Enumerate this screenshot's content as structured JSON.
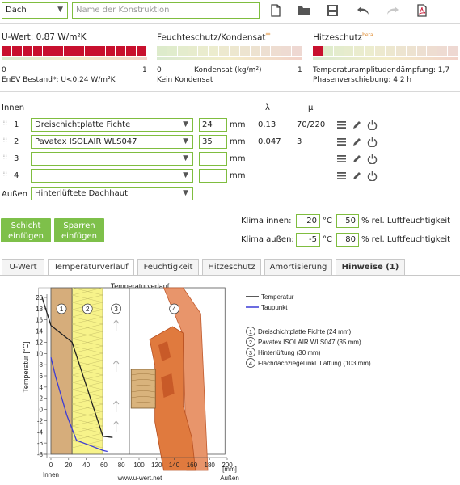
{
  "toolbar": {
    "type_select": "Dach",
    "name_placeholder": "Name der Konstruktion",
    "icons": [
      "new-file-icon",
      "open-folder-icon",
      "save-icon",
      "undo-icon",
      "redo-icon",
      "pdf-icon"
    ]
  },
  "indicators": {
    "uwert": {
      "label": "U-Wert: 0,87 W/m²K",
      "scale_min": "0",
      "scale_max": "1",
      "note": "EnEV Bestand*: U<0.24 W/m²K",
      "fill_fraction": 1.0,
      "color": "#c8102e"
    },
    "feuchte": {
      "label": "Feuchteschutz/Kondensat",
      "marker": "**",
      "scale_min": "0",
      "scale_mid": "Kondensat (kg/m²)",
      "scale_max": "1",
      "note": "Kein Kondensat",
      "fill_fraction": 0.02,
      "color": "#7ec04a"
    },
    "hitze": {
      "label": "Hitzeschutz",
      "marker": "beta",
      "line1": "Temperaturamplitudendämpfung: 1,7",
      "line2": "Phasenverschiebung: 4,2 h",
      "fill_fraction": 0.1,
      "color": "#c8102e"
    }
  },
  "layers": {
    "header_inside": "Innen",
    "header_lambda": "λ",
    "header_mu": "μ",
    "unit": "mm",
    "rows": [
      {
        "num": "1",
        "material": "Dreischichtplatte Fichte",
        "thickness": "24",
        "lambda": "0.13",
        "mu": "70/220"
      },
      {
        "num": "2",
        "material": "Pavatex ISOLAIR WLS047",
        "thickness": "35",
        "lambda": "0.047",
        "mu": "3"
      },
      {
        "num": "3",
        "material": "",
        "thickness": "",
        "lambda": "",
        "mu": ""
      },
      {
        "num": "4",
        "material": "",
        "thickness": "",
        "lambda": "",
        "mu": ""
      }
    ],
    "outside_label": "Außen",
    "outside_select": "Hinterlüftete Dachhaut"
  },
  "buttons": {
    "insert_layer": "Schicht einfügen",
    "insert_rafter": "Sparren einfügen"
  },
  "climate": {
    "inside_label": "Klima innen:",
    "inside_temp": "20",
    "inside_hum": "50",
    "outside_label": "Klima außen:",
    "outside_temp": "-5",
    "outside_hum": "80",
    "temp_unit": "°C",
    "hum_unit": "% rel. Luftfeuchtigkeit"
  },
  "tabs": [
    "U-Wert",
    "Temperaturverlauf",
    "Feuchtigkeit",
    "Hitzeschutz",
    "Amortisierung",
    "Hinweise (1)"
  ],
  "active_tab": "Temperaturverlauf",
  "chart": {
    "ylabel": "Temperatur [°C]",
    "inside_label": "Innen",
    "outside_label": "Außen",
    "unit_label": "[mm]",
    "watermark": "www.u-wert.net",
    "legend": [
      {
        "name": "Temperatur",
        "color": "#222222"
      },
      {
        "name": "Taupunkt",
        "color": "#3b3bd6"
      }
    ],
    "layer_list": [
      {
        "num": "1",
        "text": "Dreischichtplatte Fichte (24 mm)"
      },
      {
        "num": "2",
        "text": "Pavatex ISOLAIR WLS047 (35 mm)"
      },
      {
        "num": "3",
        "text": "Hinterlüftung (30 mm)"
      },
      {
        "num": "4",
        "text": "Flachdachziegel inkl. Lattung (103 mm)"
      }
    ]
  },
  "chart_data": {
    "type": "line",
    "title": "Temperaturverlauf",
    "ylabel": "Temperatur [°C]",
    "xlabel": "[mm]",
    "ylim": [
      -8,
      20
    ],
    "xlim": [
      0,
      200
    ],
    "yticks": [
      "20",
      "18",
      "16",
      "14",
      "12",
      "10",
      "8",
      "6",
      "4",
      "2",
      "0",
      "-2",
      "-4",
      "-6",
      "-8"
    ],
    "xticks": [
      "0",
      "20",
      "40",
      "60",
      "80",
      "100",
      "120",
      "140",
      "160",
      "180",
      "200"
    ],
    "series": [
      {
        "name": "Temperatur",
        "color": "#222222",
        "x": [
          -10,
          -6,
          0,
          24,
          59,
          70
        ],
        "y": [
          20,
          18,
          15,
          12,
          -4.8,
          -5.0
        ]
      },
      {
        "name": "Taupunkt",
        "color": "#3b3bd6",
        "x": [
          0,
          5,
          18,
          24,
          29,
          42,
          59,
          64
        ],
        "y": [
          9.3,
          6,
          -1,
          -3.5,
          -5.5,
          -6.3,
          -7.3,
          -7.5
        ]
      }
    ]
  }
}
